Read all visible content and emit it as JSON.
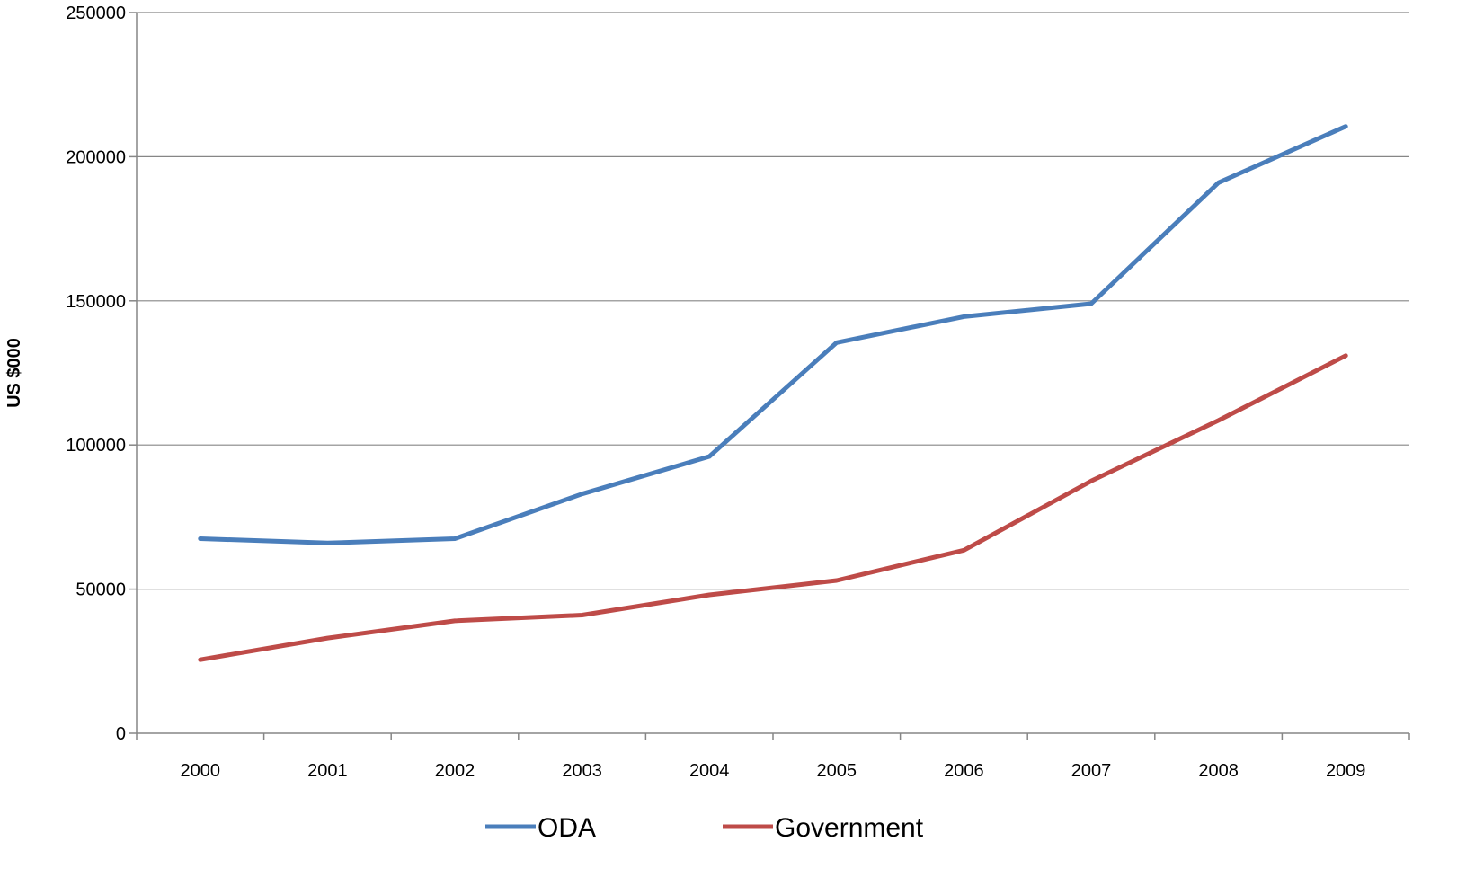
{
  "chart_data": {
    "type": "line",
    "title": "",
    "xlabel": "",
    "ylabel": "US $000",
    "categories": [
      "2000",
      "2001",
      "2002",
      "2003",
      "2004",
      "2005",
      "2006",
      "2007",
      "2008",
      "2009"
    ],
    "ylim": [
      0,
      250000
    ],
    "yticks": [
      "0",
      "50000",
      "100000",
      "150000",
      "200000",
      "250000"
    ],
    "grid": true,
    "legend_position": "bottom",
    "series": [
      {
        "name": "ODA",
        "color": "#4a7ebb",
        "values": [
          67500,
          66000,
          67500,
          83000,
          96000,
          135500,
          144500,
          149000,
          191000,
          210500
        ]
      },
      {
        "name": "Government",
        "color": "#be4b48",
        "values": [
          25500,
          33000,
          39000,
          41000,
          48000,
          53000,
          63500,
          87500,
          108500,
          131000
        ]
      }
    ]
  }
}
